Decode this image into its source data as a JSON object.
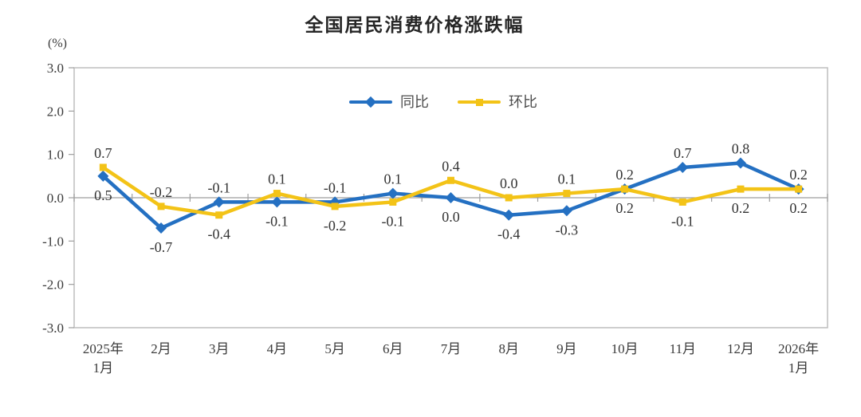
{
  "title": "全国居民消费价格涨跌幅",
  "y_axis_unit": "(%)",
  "legend": [
    {
      "label": "同比",
      "color": "#2470C2",
      "marker": "diamond"
    },
    {
      "label": "环比",
      "color": "#F3C317",
      "marker": "square"
    }
  ],
  "colors": {
    "yoy_blue": "#2470C2",
    "mom_yellow": "#F3C317",
    "plot_border": "#BDBDBD",
    "axis_line": "#9E9E9E",
    "text": "#333333"
  },
  "chart_data": {
    "type": "line",
    "title": "全国居民消费价格涨跌幅",
    "ylabel": "(%)",
    "ylim": [
      -3.0,
      3.0
    ],
    "ytick_step": 1.0,
    "ytick_labels": [
      "3.0",
      "2.0",
      "1.0",
      "0.0",
      "-1.0",
      "-2.0",
      "-3.0"
    ],
    "grid": "zero-line-only",
    "legend_position": "top-center-inside",
    "categories": [
      "2025年\n1月",
      "2月",
      "3月",
      "4月",
      "5月",
      "6月",
      "7月",
      "8月",
      "9月",
      "10月",
      "11月",
      "12月",
      "2026年\n1月"
    ],
    "series": [
      {
        "name": "同比",
        "color": "#2470C2",
        "marker": "diamond",
        "values": [
          0.5,
          -0.7,
          -0.1,
          -0.1,
          -0.1,
          0.1,
          0.0,
          -0.4,
          -0.3,
          0.2,
          0.7,
          0.8,
          0.2
        ]
      },
      {
        "name": "环比",
        "color": "#F3C317",
        "marker": "square",
        "values": [
          0.7,
          -0.2,
          -0.4,
          0.1,
          -0.2,
          -0.1,
          0.4,
          0.0,
          0.1,
          0.2,
          -0.1,
          0.2,
          0.2
        ]
      }
    ],
    "point_labels": [
      {
        "above": "0.7",
        "below": "0.5"
      },
      {
        "above": "-0.2",
        "below": "-0.7"
      },
      {
        "above": "-0.1",
        "below": "-0.4"
      },
      {
        "above": "0.1",
        "below": "-0.1"
      },
      {
        "above": "-0.1",
        "below": "-0.2"
      },
      {
        "above": "0.1",
        "below": "-0.1"
      },
      {
        "above": "0.4",
        "below": "0.0"
      },
      {
        "above": "0.0",
        "below": "-0.4"
      },
      {
        "above": "0.1",
        "below": "-0.3"
      },
      {
        "above": "0.2",
        "below": "0.2"
      },
      {
        "above": "0.7",
        "below": "-0.1"
      },
      {
        "above": "0.8",
        "below": "0.2"
      },
      {
        "above": "0.2",
        "below": "0.2"
      }
    ]
  }
}
